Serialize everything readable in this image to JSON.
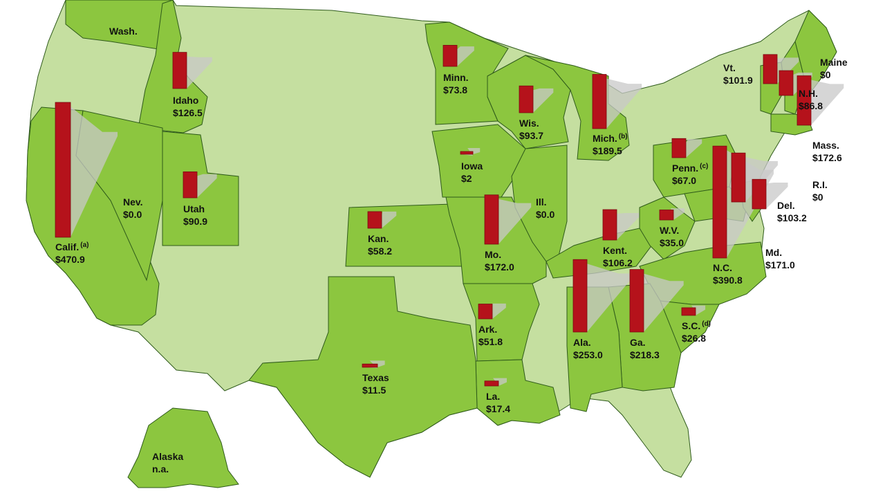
{
  "colors": {
    "state_with_program": "#8cc63f",
    "state_without_program": "#c5dfa0",
    "bar": "#b5121b",
    "shadow": "#c8c8c8",
    "border": "#2e5a1a",
    "ocean": "#ffffff"
  },
  "chart_data": {
    "type": "map-bar",
    "units": "$",
    "states": [
      {
        "id": "wa",
        "name": "Wash.",
        "value_text": "",
        "value": null,
        "note": ""
      },
      {
        "id": "id",
        "name": "Idaho",
        "value_text": "$126.5",
        "value": 126.5,
        "note": ""
      },
      {
        "id": "ca",
        "name": "Calif.",
        "value_text": "$470.9",
        "value": 470.9,
        "note": "(a)"
      },
      {
        "id": "nv",
        "name": "Nev.",
        "value_text": "$0.0",
        "value": 0.0,
        "note": ""
      },
      {
        "id": "ut",
        "name": "Utah",
        "value_text": "$90.9",
        "value": 90.9,
        "note": ""
      },
      {
        "id": "mn",
        "name": "Minn.",
        "value_text": "$73.8",
        "value": 73.8,
        "note": ""
      },
      {
        "id": "wi",
        "name": "Wis.",
        "value_text": "$93.7",
        "value": 93.7,
        "note": ""
      },
      {
        "id": "mi",
        "name": "Mich.",
        "value_text": "$189.5",
        "value": 189.5,
        "note": "(b)"
      },
      {
        "id": "ia",
        "name": "Iowa",
        "value_text": "$2",
        "value": 2,
        "note": ""
      },
      {
        "id": "ks",
        "name": "Kan.",
        "value_text": "$58.2",
        "value": 58.2,
        "note": ""
      },
      {
        "id": "mo",
        "name": "Mo.",
        "value_text": "$172.0",
        "value": 172.0,
        "note": ""
      },
      {
        "id": "il",
        "name": "Ill.",
        "value_text": "$0.0",
        "value": 0.0,
        "note": ""
      },
      {
        "id": "ky",
        "name": "Kent.",
        "value_text": "$106.2",
        "value": 106.2,
        "note": ""
      },
      {
        "id": "wv",
        "name": "W.V.",
        "value_text": "$35.0",
        "value": 35.0,
        "note": ""
      },
      {
        "id": "pa",
        "name": "Penn.",
        "value_text": "$67.0",
        "value": 67.0,
        "note": "(c)"
      },
      {
        "id": "nc",
        "name": "N.C.",
        "value_text": "$390.8",
        "value": 390.8,
        "note": ""
      },
      {
        "id": "md",
        "name": "Md.",
        "value_text": "$171.0",
        "value": 171.0,
        "note": ""
      },
      {
        "id": "de",
        "name": "Del.",
        "value_text": "$103.2",
        "value": 103.2,
        "note": ""
      },
      {
        "id": "ri",
        "name": "R.I.",
        "value_text": "$0",
        "value": 0,
        "note": ""
      },
      {
        "id": "ma",
        "name": "Mass.",
        "value_text": "$172.6",
        "value": 172.6,
        "note": ""
      },
      {
        "id": "nh",
        "name": "N.H.",
        "value_text": "$86.8",
        "value": 86.8,
        "note": ""
      },
      {
        "id": "vt",
        "name": "Vt.",
        "value_text": "$101.9",
        "value": 101.9,
        "note": ""
      },
      {
        "id": "me",
        "name": "Maine",
        "value_text": "$0",
        "value": 0,
        "note": ""
      },
      {
        "id": "ar",
        "name": "Ark.",
        "value_text": "$51.8",
        "value": 51.8,
        "note": ""
      },
      {
        "id": "la",
        "name": "La.",
        "value_text": "$17.4",
        "value": 17.4,
        "note": ""
      },
      {
        "id": "tx",
        "name": "Texas",
        "value_text": "$11.5",
        "value": 11.5,
        "note": ""
      },
      {
        "id": "al",
        "name": "Ala.",
        "value_text": "$253.0",
        "value": 253.0,
        "note": ""
      },
      {
        "id": "ga",
        "name": "Ga.",
        "value_text": "$218.3",
        "value": 218.3,
        "note": ""
      },
      {
        "id": "sc",
        "name": "S.C.",
        "value_text": "$26.8",
        "value": 26.8,
        "note": "(d)"
      },
      {
        "id": "ak",
        "name": "Alaska",
        "value_text": "n.a.",
        "value": null,
        "note": ""
      }
    ]
  }
}
